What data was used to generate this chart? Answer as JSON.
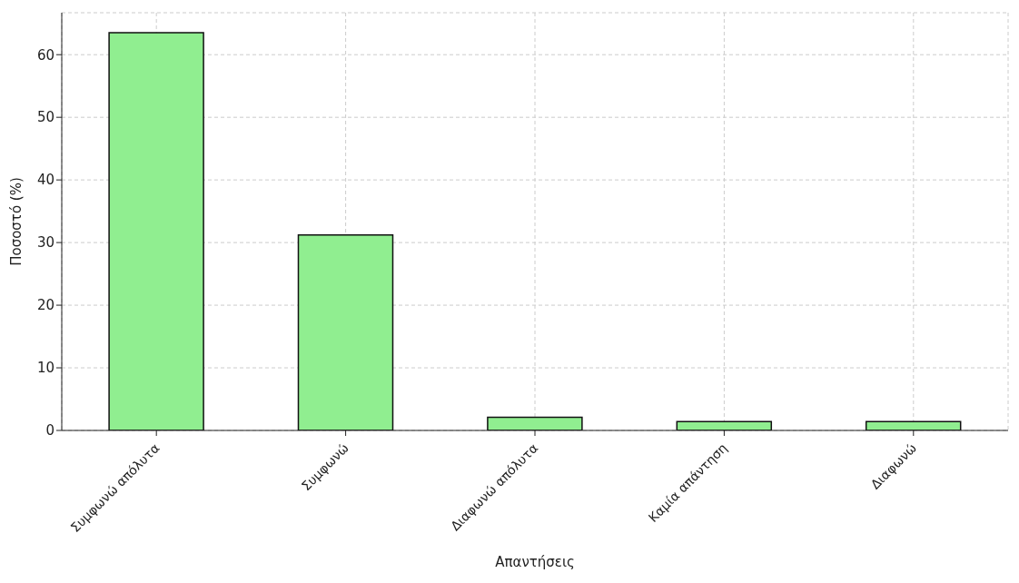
{
  "chart_data": {
    "type": "bar",
    "xlabel": "Απαντήσεις",
    "ylabel": "Ποσοστό (%)",
    "categories": [
      "Συμφωνώ απόλυτα",
      "Συμφωνώ",
      "Διαφωνώ απόλυτα",
      "Καμία απάντηση",
      "Διαφωνώ"
    ],
    "values": [
      63.5,
      31.2,
      2.1,
      1.4,
      1.4
    ],
    "color": "#90ee90",
    "ylim": [
      0,
      66.7
    ],
    "yticks": [
      0,
      10,
      20,
      30,
      40,
      50,
      60
    ],
    "grid": true
  }
}
